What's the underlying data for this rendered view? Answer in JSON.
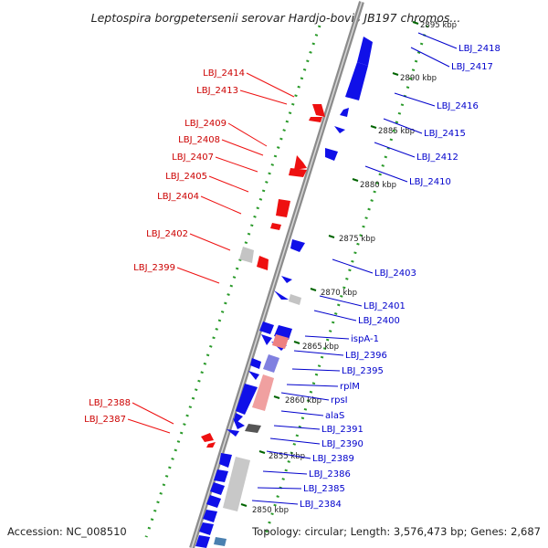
{
  "title": "Leptospira borgpetersenii serovar Hardjo-bovis JB197 chromos...",
  "accession": "Accession: NC_008510",
  "topology": "Topology: circular; Length: 3,576,473 bp; Genes: 2,687",
  "colors": {
    "backbone": "#8c8c8c",
    "forward_gene": "#1010e8",
    "reverse_gene": "#ee1010",
    "dots": "#2a9a2a",
    "kbp_tick": "#006400",
    "label_forward": "#0000cc",
    "label_reverse": "#cc0000"
  },
  "kbp_ticks": [
    {
      "label": "2895 kbp"
    },
    {
      "label": "2890 kbp"
    },
    {
      "label": "2885 kbp"
    },
    {
      "label": "2880 kbp"
    },
    {
      "label": "2875 kbp"
    },
    {
      "label": "2870 kbp"
    },
    {
      "label": "2865 kbp"
    },
    {
      "label": "2860 kbp"
    },
    {
      "label": "2855 kbp"
    },
    {
      "label": "2850 kbp"
    }
  ],
  "genes_left": [
    {
      "label": "LBJ_2414"
    },
    {
      "label": "LBJ_2413"
    },
    {
      "label": "LBJ_2409"
    },
    {
      "label": "LBJ_2408"
    },
    {
      "label": "LBJ_2407"
    },
    {
      "label": "LBJ_2405"
    },
    {
      "label": "LBJ_2404"
    },
    {
      "label": "LBJ_2402"
    },
    {
      "label": "LBJ_2399"
    },
    {
      "label": "LBJ_2388"
    },
    {
      "label": "LBJ_2387"
    }
  ],
  "genes_right": [
    {
      "label": "LBJ_2418"
    },
    {
      "label": "LBJ_2417"
    },
    {
      "label": "LBJ_2416"
    },
    {
      "label": "LBJ_2415"
    },
    {
      "label": "LBJ_2412"
    },
    {
      "label": "LBJ_2410"
    },
    {
      "label": "LBJ_2403"
    },
    {
      "label": "LBJ_2401"
    },
    {
      "label": "LBJ_2400"
    },
    {
      "label": "ispA-1"
    },
    {
      "label": "LBJ_2396"
    },
    {
      "label": "LBJ_2395"
    },
    {
      "label": "rplM"
    },
    {
      "label": "rpsI"
    },
    {
      "label": "alaS"
    },
    {
      "label": "LBJ_2391"
    },
    {
      "label": "LBJ_2390"
    },
    {
      "label": "LBJ_2389"
    },
    {
      "label": "LBJ_2386"
    },
    {
      "label": "LBJ_2385"
    },
    {
      "label": "LBJ_2384"
    }
  ]
}
